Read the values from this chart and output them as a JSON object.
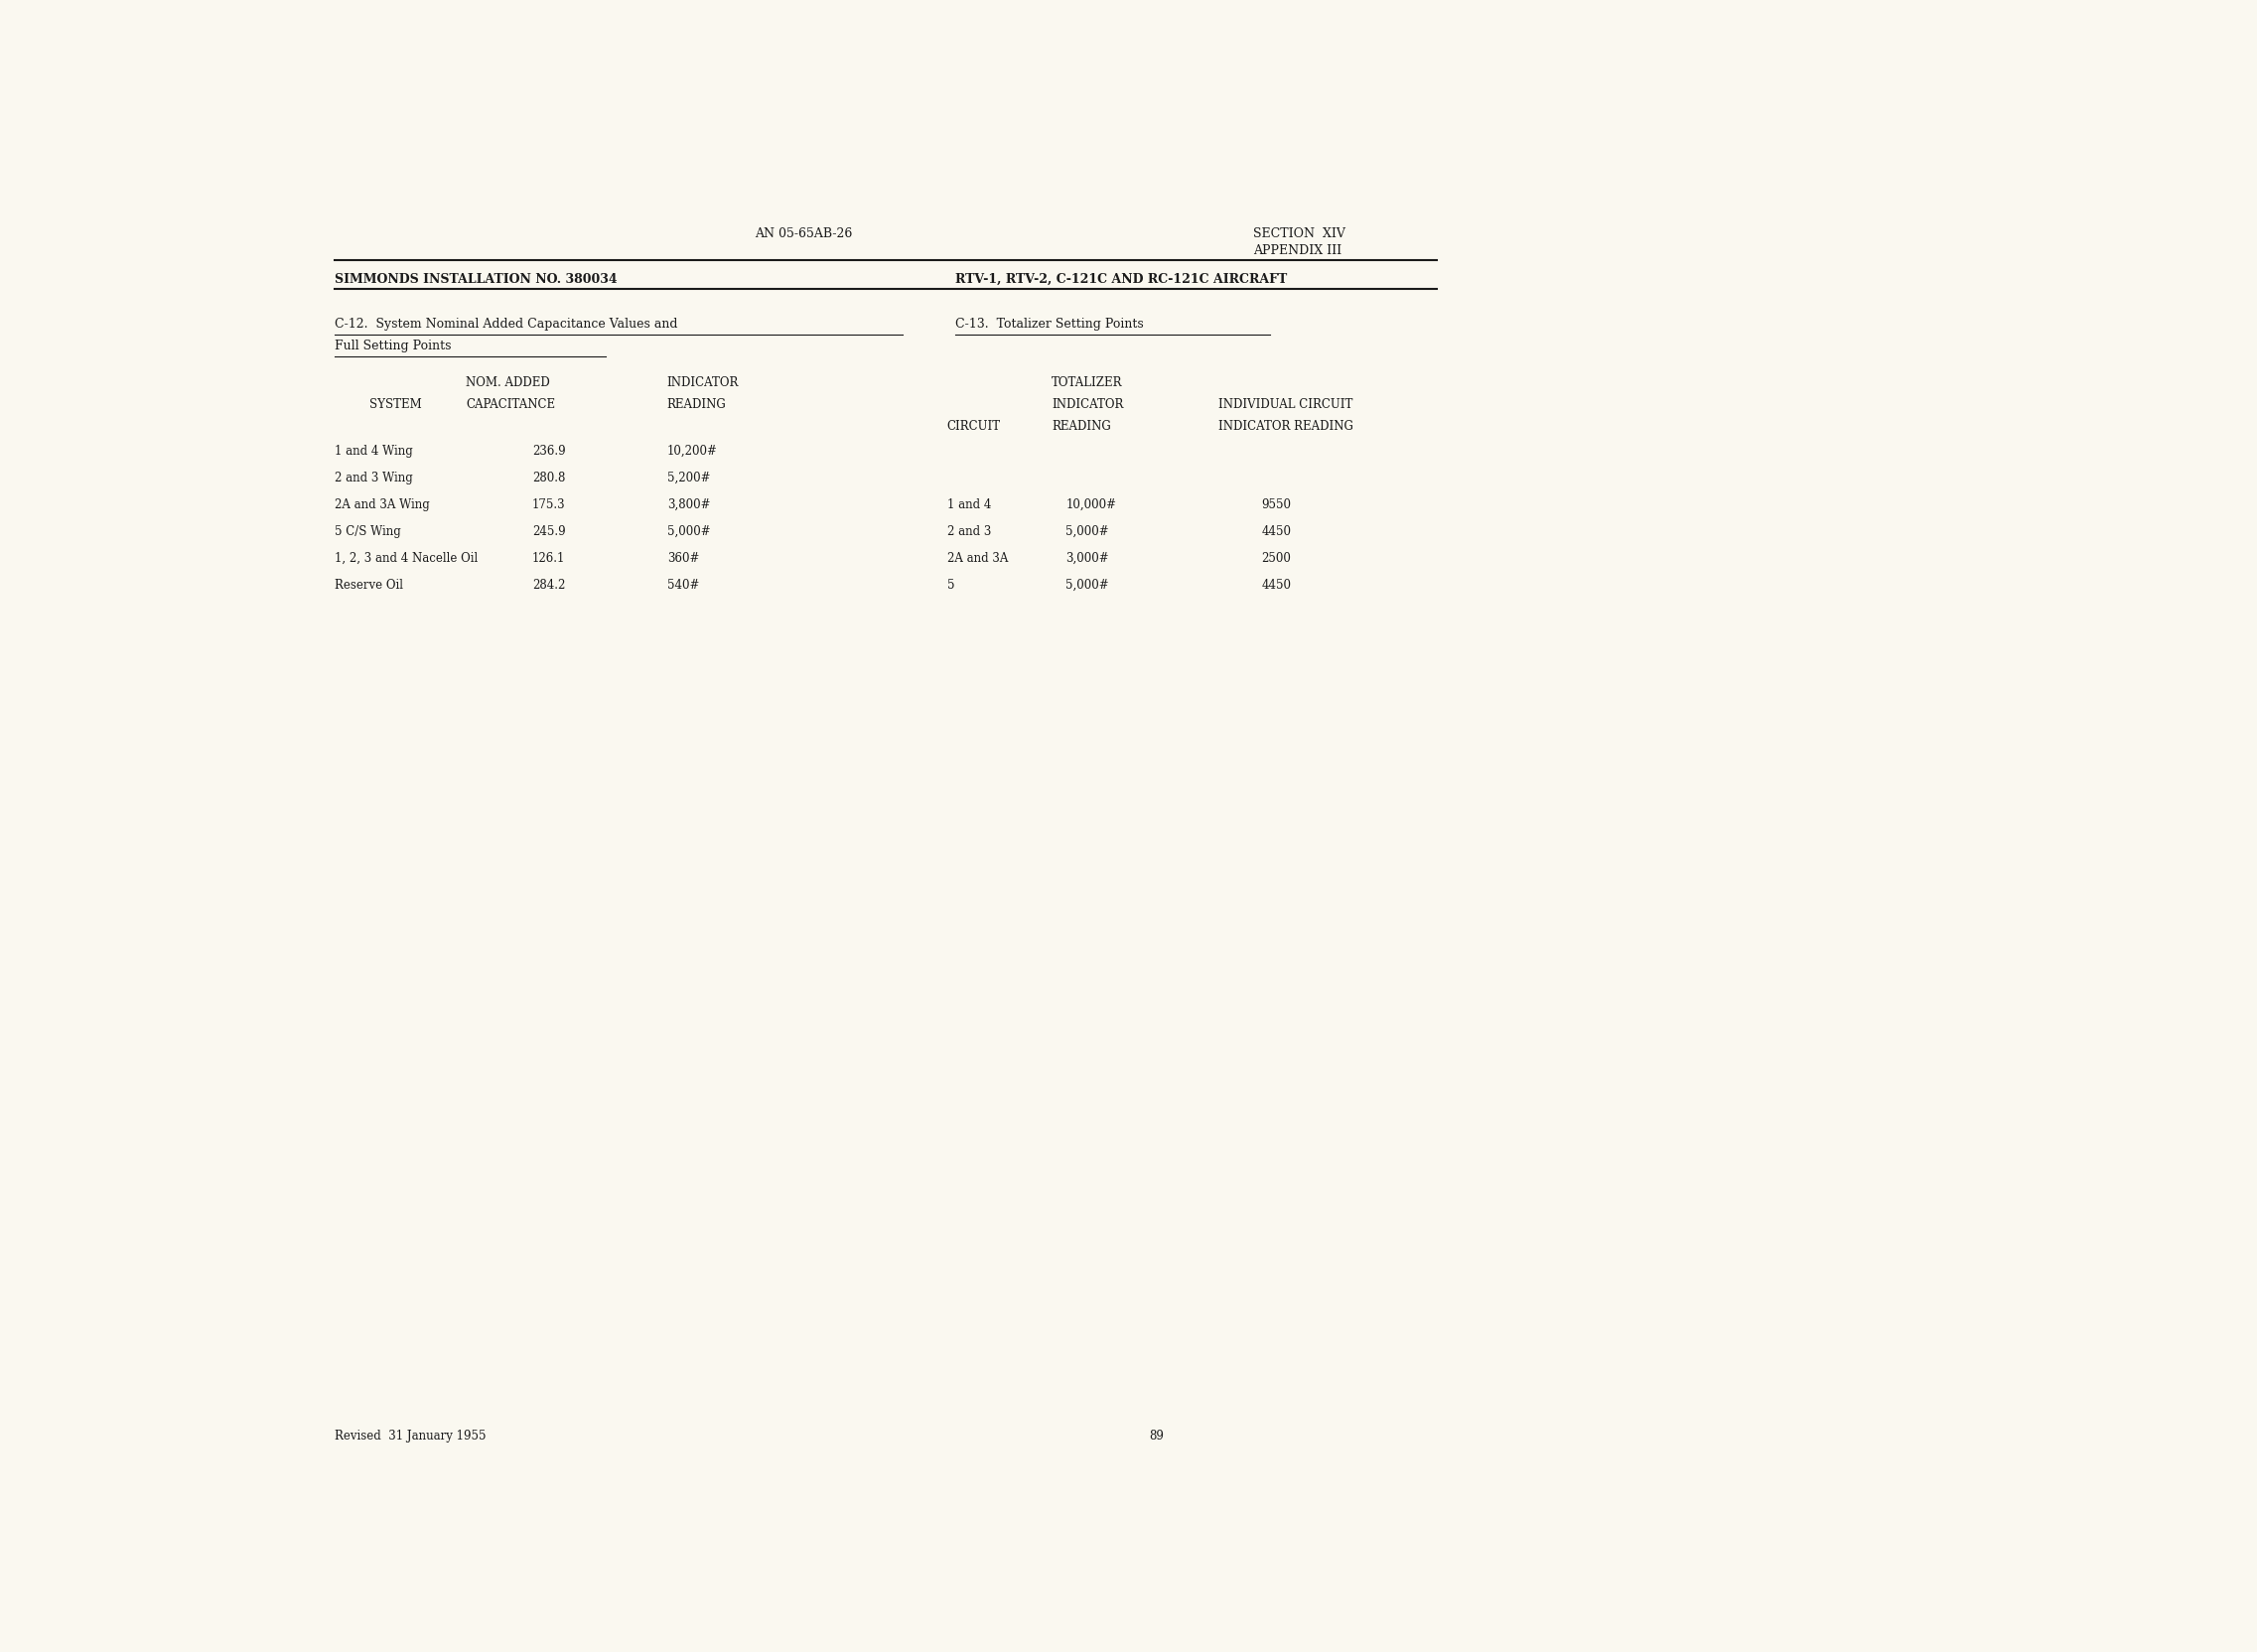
{
  "bg_color": "#faf8f0",
  "page_width": 22.73,
  "page_height": 16.64,
  "header_left": "AN 05-65AB-26",
  "header_right_line1": "SECTION  XIV",
  "header_right_line2": "APPENDIX III",
  "subheader_left": "SIMMONDS INSTALLATION NO. 380034",
  "subheader_right": "RTV-1, RTV-2, C-121C AND RC-121C AIRCRAFT",
  "section_c12_title_line1": "C-12.  System Nominal Added Capacitance Values and",
  "section_c12_title_line2": "Full Setting Points",
  "section_c13_title": "C-13.  Totalizer Setting Points",
  "table_left_data": [
    {
      "system": "1 and 4 Wing",
      "capacitance": "236.9",
      "reading": "10,200#"
    },
    {
      "system": "2 and 3 Wing",
      "capacitance": "280.8",
      "reading": "5,200#"
    },
    {
      "system": "2A and 3A Wing",
      "capacitance": "175.3",
      "reading": "3,800#"
    },
    {
      "system": "5 C/S Wing",
      "capacitance": "245.9",
      "reading": "5,000#"
    },
    {
      "system": "1, 2, 3 and 4 Nacelle Oil",
      "capacitance": "126.1",
      "reading": "360#"
    },
    {
      "system": "Reserve Oil",
      "capacitance": "284.2",
      "reading": "540#"
    }
  ],
  "table_right_data": [
    {
      "circuit": "1 and 4",
      "tot_reading": "10,000#",
      "ind_reading": "9550"
    },
    {
      "circuit": "2 and 3",
      "tot_reading": "5,000#",
      "ind_reading": "4450"
    },
    {
      "circuit": "2A and 3A",
      "tot_reading": "3,000#",
      "ind_reading": "2500"
    },
    {
      "circuit": "5",
      "tot_reading": "5,000#",
      "ind_reading": "4450"
    }
  ],
  "footer_left": "Revised  31 January 1955",
  "footer_page": "89",
  "text_color": "#1a1a1a",
  "line_color": "#1a1a1a"
}
